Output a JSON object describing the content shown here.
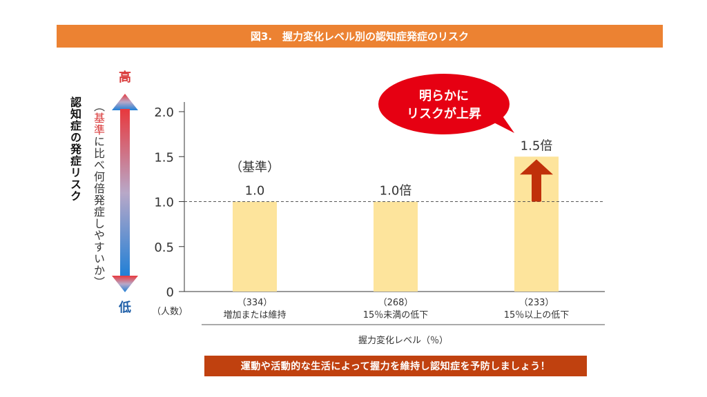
{
  "header": {
    "title": "図3.　握力変化レベル別の認知症発症のリスク"
  },
  "footer": {
    "message": "運動や活動的な生活によって握力を維持し認知症を予防しましょう！"
  },
  "axis": {
    "title": "認知症の発症リスク",
    "subtitle_prefix": "（",
    "subtitle_highlight": "基準",
    "subtitle_rest": "に比べ何倍発症しやすいか）",
    "high_label": "高",
    "low_label": "低",
    "count_label": "（人数）"
  },
  "bubble": {
    "line1": "明らかに",
    "line2": "リスクが上昇"
  },
  "colors": {
    "header": "#ec8232",
    "footer": "#c0410f",
    "bar": "#fde49c",
    "arrow": "#c0300a",
    "bubble": "#e60012",
    "gradient_top": "#e8383d",
    "gradient_bottom": "#1f7fd6"
  },
  "chart_data": {
    "type": "bar",
    "categories": [
      "増加または維持",
      "15％未満の低下",
      "15％以上の低下"
    ],
    "counts": [
      "（334）",
      "（268）",
      "（233）"
    ],
    "values": [
      1.0,
      1.0,
      1.5
    ],
    "value_labels": [
      "1.0",
      "1.0倍",
      "1.5倍"
    ],
    "reference_note": "（基準）",
    "yticks": [
      "2.0",
      "1.5",
      "1.0",
      "0.5",
      "0"
    ],
    "ytick_values": [
      2.0,
      1.5,
      1.0,
      0.5,
      0
    ],
    "ylim": [
      0,
      2.0
    ],
    "xlabel": "握力変化レベル（％）",
    "reference_line": 1.0
  }
}
